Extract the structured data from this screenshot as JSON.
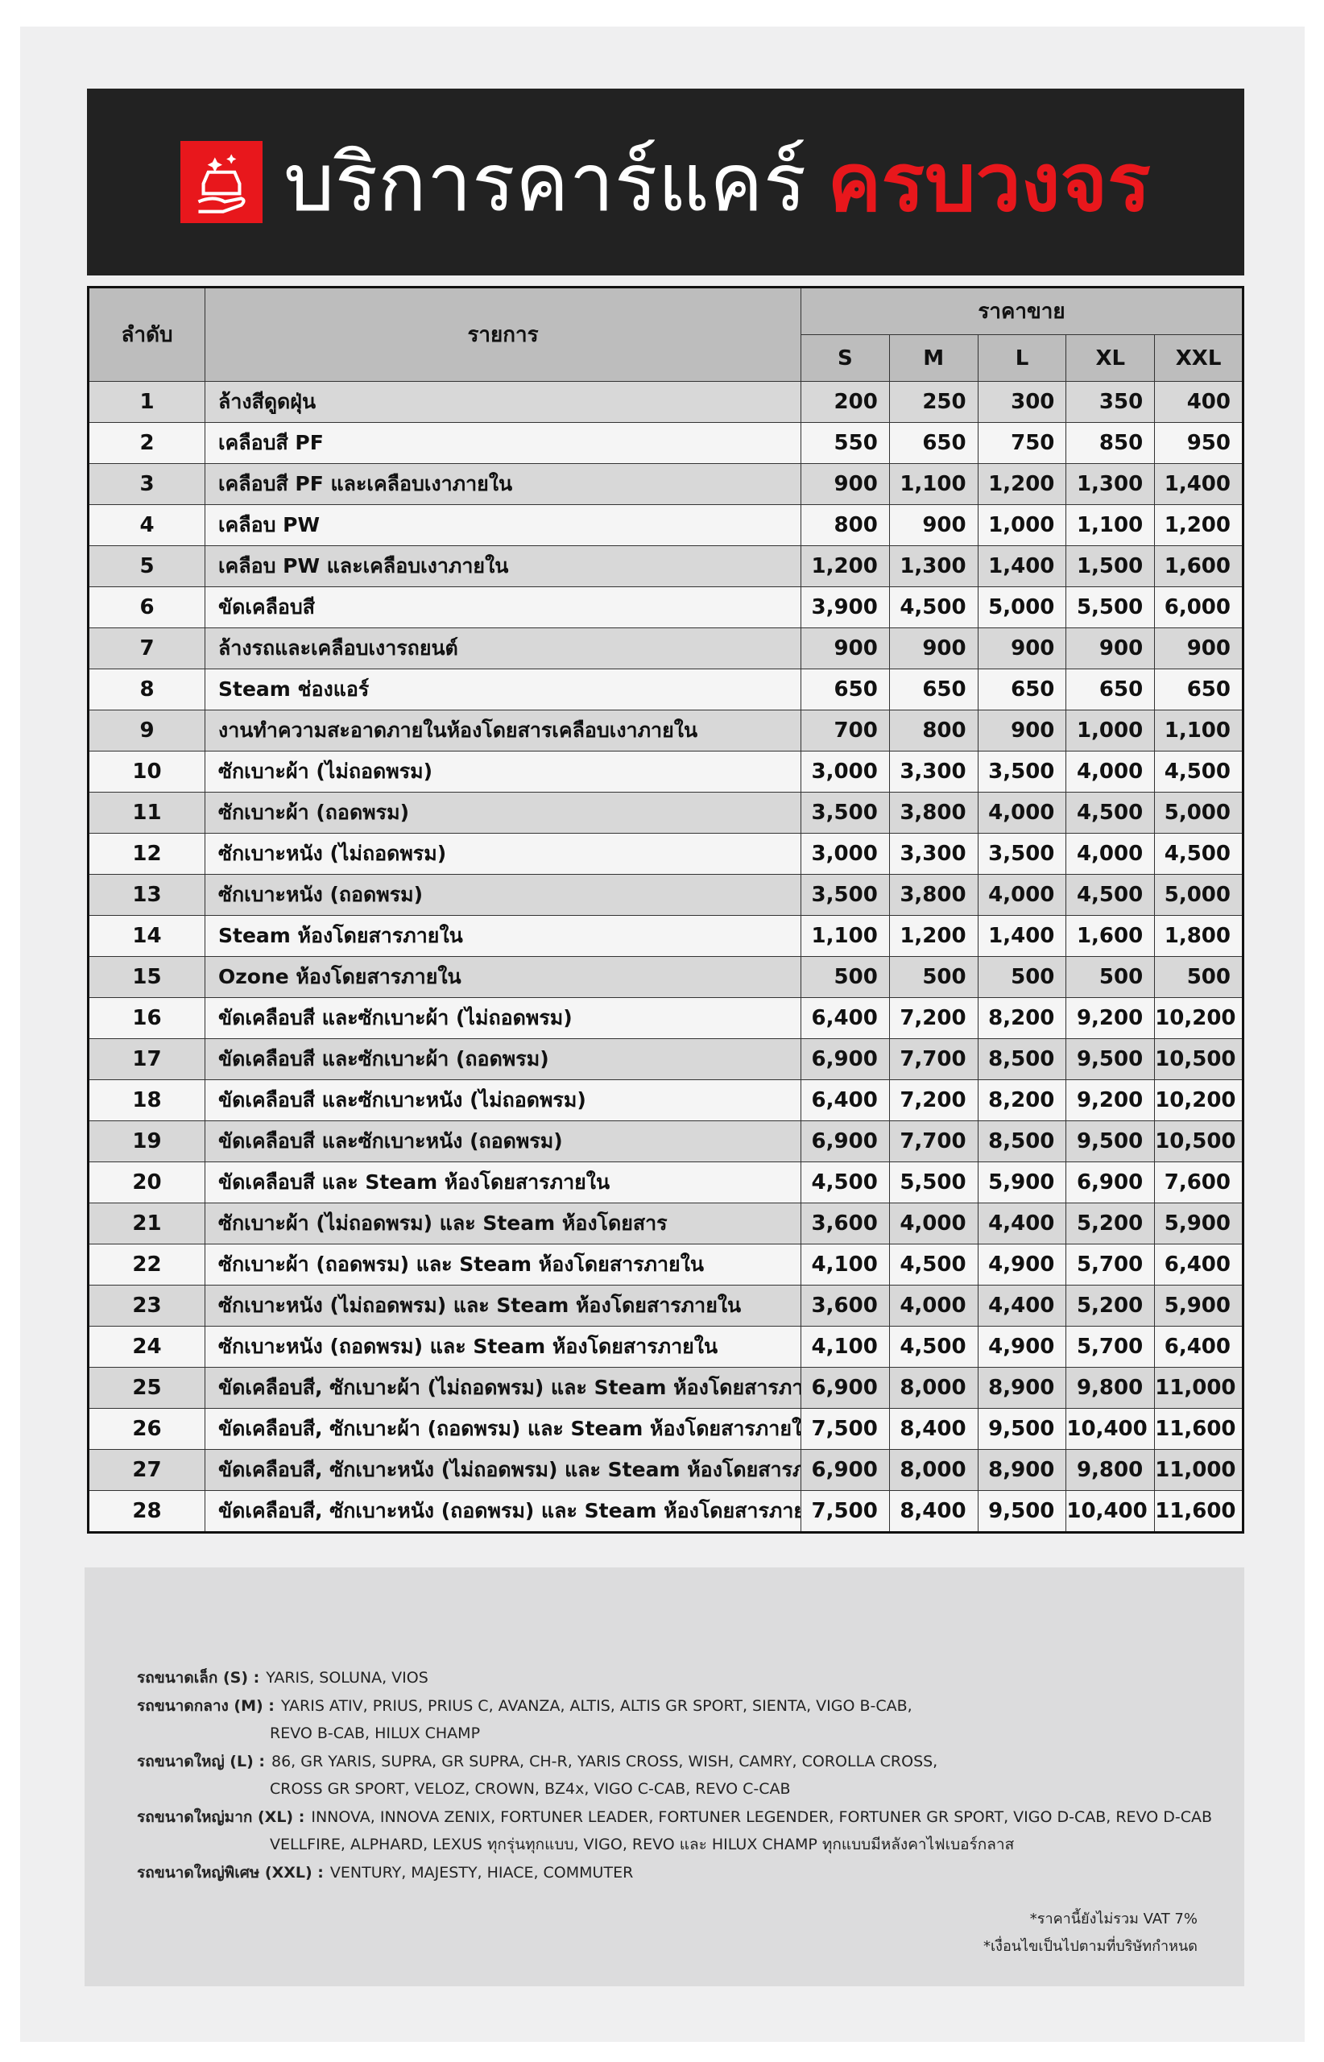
{
  "header": {
    "title_main": "บริการคาร์แคร์",
    "title_accent": "ครบวงจร"
  },
  "table": {
    "headers": {
      "no": "ลำดับ",
      "item": "รายการ",
      "price": "ราคาขาย",
      "sizes": [
        "S",
        "M",
        "L",
        "XL",
        "XXL"
      ]
    },
    "rows": [
      [
        "1",
        "ล้างสีดูดฝุ่น",
        "200",
        "250",
        "300",
        "350",
        "400"
      ],
      [
        "2",
        "เคลือบสี PF",
        "550",
        "650",
        "750",
        "850",
        "950"
      ],
      [
        "3",
        "เคลือบสี PF และเคลือบเงาภายใน",
        "900",
        "1,100",
        "1,200",
        "1,300",
        "1,400"
      ],
      [
        "4",
        "เคลือบ PW",
        "800",
        "900",
        "1,000",
        "1,100",
        "1,200"
      ],
      [
        "5",
        "เคลือบ PW และเคลือบเงาภายใน",
        "1,200",
        "1,300",
        "1,400",
        "1,500",
        "1,600"
      ],
      [
        "6",
        "ขัดเคลือบสี",
        "3,900",
        "4,500",
        "5,000",
        "5,500",
        "6,000"
      ],
      [
        "7",
        "ล้างรถและเคลือบเงารถยนต์",
        "900",
        "900",
        "900",
        "900",
        "900"
      ],
      [
        "8",
        "Steam ช่องแอร์",
        "650",
        "650",
        "650",
        "650",
        "650"
      ],
      [
        "9",
        "งานทำความสะอาดภายในห้องโดยสารเคลือบเงาภายใน",
        "700",
        "800",
        "900",
        "1,000",
        "1,100"
      ],
      [
        "10",
        "ซักเบาะผ้า (ไม่ถอดพรม)",
        "3,000",
        "3,300",
        "3,500",
        "4,000",
        "4,500"
      ],
      [
        "11",
        "ซักเบาะผ้า (ถอดพรม)",
        "3,500",
        "3,800",
        "4,000",
        "4,500",
        "5,000"
      ],
      [
        "12",
        "ซักเบาะหนัง (ไม่ถอดพรม)",
        "3,000",
        "3,300",
        "3,500",
        "4,000",
        "4,500"
      ],
      [
        "13",
        "ซักเบาะหนัง (ถอดพรม)",
        "3,500",
        "3,800",
        "4,000",
        "4,500",
        "5,000"
      ],
      [
        "14",
        "Steam ห้องโดยสารภายใน",
        "1,100",
        "1,200",
        "1,400",
        "1,600",
        "1,800"
      ],
      [
        "15",
        "Ozone ห้องโดยสารภายใน",
        "500",
        "500",
        "500",
        "500",
        "500"
      ],
      [
        "16",
        "ขัดเคลือบสี และซักเบาะผ้า (ไม่ถอดพรม)",
        "6,400",
        "7,200",
        "8,200",
        "9,200",
        "10,200"
      ],
      [
        "17",
        "ขัดเคลือบสี และซักเบาะผ้า (ถอดพรม)",
        "6,900",
        "7,700",
        "8,500",
        "9,500",
        "10,500"
      ],
      [
        "18",
        "ขัดเคลือบสี และซักเบาะหนัง (ไม่ถอดพรม)",
        "6,400",
        "7,200",
        "8,200",
        "9,200",
        "10,200"
      ],
      [
        "19",
        "ขัดเคลือบสี และซักเบาะหนัง (ถอดพรม)",
        "6,900",
        "7,700",
        "8,500",
        "9,500",
        "10,500"
      ],
      [
        "20",
        "ขัดเคลือบสี และ Steam ห้องโดยสารภายใน",
        "4,500",
        "5,500",
        "5,900",
        "6,900",
        "7,600"
      ],
      [
        "21",
        "ซักเบาะผ้า (ไม่ถอดพรม) และ Steam ห้องโดยสาร",
        "3,600",
        "4,000",
        "4,400",
        "5,200",
        "5,900"
      ],
      [
        "22",
        "ซักเบาะผ้า (ถอดพรม) และ Steam ห้องโดยสารภายใน",
        "4,100",
        "4,500",
        "4,900",
        "5,700",
        "6,400"
      ],
      [
        "23",
        "ซักเบาะหนัง (ไม่ถอดพรม) และ Steam ห้องโดยสารภายใน",
        "3,600",
        "4,000",
        "4,400",
        "5,200",
        "5,900"
      ],
      [
        "24",
        "ซักเบาะหนัง (ถอดพรม) และ Steam ห้องโดยสารภายใน",
        "4,100",
        "4,500",
        "4,900",
        "5,700",
        "6,400"
      ],
      [
        "25",
        "ขัดเคลือบสี, ซักเบาะผ้า (ไม่ถอดพรม) และ Steam ห้องโดยสารภายใน",
        "6,900",
        "8,000",
        "8,900",
        "9,800",
        "11,000"
      ],
      [
        "26",
        "ขัดเคลือบสี, ซักเบาะผ้า (ถอดพรม) และ Steam ห้องโดยสารภายใน",
        "7,500",
        "8,400",
        "9,500",
        "10,400",
        "11,600"
      ],
      [
        "27",
        "ขัดเคลือบสี, ซักเบาะหนัง (ไม่ถอดพรม) และ Steam ห้องโดยสารภายใน",
        "6,900",
        "8,000",
        "8,900",
        "9,800",
        "11,000"
      ],
      [
        "28",
        "ขัดเคลือบสี, ซักเบาะหนัง (ถอดพรม) และ Steam ห้องโดยสารภายใน",
        "7,500",
        "8,400",
        "9,500",
        "10,400",
        "11,600"
      ]
    ]
  },
  "notes": [
    {
      "label": "รถขนาดเล็ก (S) :",
      "lines": [
        "YARIS, SOLUNA, VIOS"
      ]
    },
    {
      "label": "รถขนาดกลาง (M) :",
      "lines": [
        "YARIS ATIV, PRIUS, PRIUS C, AVANZA, ALTIS, ALTIS GR SPORT, SIENTA, VIGO B-CAB,",
        "REVO B-CAB, HILUX CHAMP"
      ]
    },
    {
      "label": "รถขนาดใหญ่ (L) :",
      "lines": [
        "86, GR YARIS, SUPRA, GR SUPRA, CH-R, YARIS CROSS, WISH, CAMRY, COROLLA CROSS,",
        "CROSS GR SPORT, VELOZ, CROWN, BZ4x, VIGO C-CAB, REVO C-CAB"
      ]
    },
    {
      "label": "รถขนาดใหญ่มาก (XL) :",
      "lines": [
        "INNOVA, INNOVA ZENIX, FORTUNER LEADER, FORTUNER LEGENDER, FORTUNER GR SPORT, VIGO D-CAB, REVO D-CAB",
        "VELLFIRE, ALPHARD, LEXUS ทุกรุ่นทุกแบบ, VIGO, REVO และ HILUX CHAMP ทุกแบบมีหลังคาไฟเบอร์กลาส"
      ]
    },
    {
      "label": "รถขนาดใหญ่พิเศษ (XXL) :",
      "lines": [
        "VENTURY, MAJESTY, HIACE, COMMUTER"
      ]
    }
  ],
  "footnotes": [
    "*ราคานี้ยังไม่รวม VAT 7%",
    "*เงื่อนไขเป็นไปตามที่บริษัทกำหนด"
  ]
}
